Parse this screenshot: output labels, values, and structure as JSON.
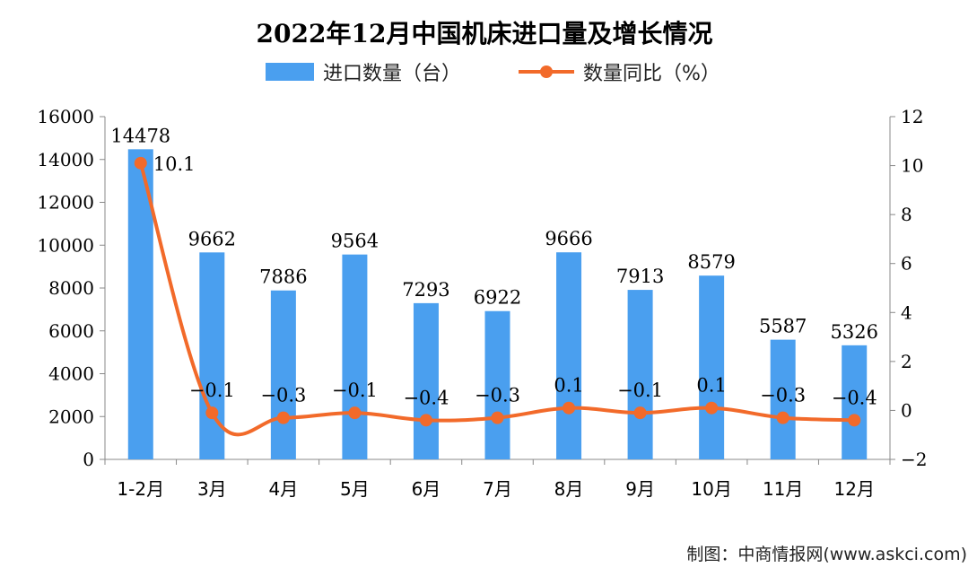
{
  "chart_data": {
    "type": "bar",
    "title": "2022年12月中国机床进口量及增长情况",
    "categories": [
      "1-2月",
      "3月",
      "4月",
      "5月",
      "6月",
      "7月",
      "8月",
      "9月",
      "10月",
      "11月",
      "12月"
    ],
    "series": [
      {
        "name": "进口数量（台）",
        "type": "bar",
        "axis": "left",
        "color": "#4a9fef",
        "values": [
          14478,
          9662,
          7886,
          9564,
          7293,
          6922,
          9666,
          7913,
          8579,
          5587,
          5326
        ],
        "labels": [
          "14478",
          "9662",
          "7886",
          "9564",
          "7293",
          "6922",
          "9666",
          "7913",
          "8579",
          "5587",
          "5326"
        ]
      },
      {
        "name": "数量同比（%）",
        "type": "line",
        "axis": "right",
        "color": "#f26a2a",
        "values": [
          10.1,
          -0.1,
          -0.3,
          -0.1,
          -0.4,
          -0.3,
          0.1,
          -0.1,
          0.1,
          -0.3,
          -0.4
        ],
        "labels": [
          "10.1",
          "−0.1",
          "−0.3",
          "−0.1",
          "−0.4",
          "−0.3",
          "0.1",
          "−0.1",
          "0.1",
          "−0.3",
          "−0.4"
        ]
      }
    ],
    "y_left": {
      "min": 0,
      "max": 16000,
      "ticks": [
        0,
        2000,
        4000,
        6000,
        8000,
        10000,
        12000,
        14000,
        16000
      ],
      "tick_labels": [
        "0",
        "2000",
        "4000",
        "6000",
        "8000",
        "10000",
        "12000",
        "14000",
        "16000"
      ]
    },
    "y_right": {
      "min": -2,
      "max": 12,
      "ticks": [
        -2,
        0,
        2,
        4,
        6,
        8,
        10,
        12
      ],
      "tick_labels": [
        "−2",
        "0",
        "2",
        "4",
        "6",
        "8",
        "10",
        "12"
      ]
    },
    "legend_position": "top-center",
    "grid": false,
    "source": "制图：中商情报网(www.askci.com)"
  }
}
